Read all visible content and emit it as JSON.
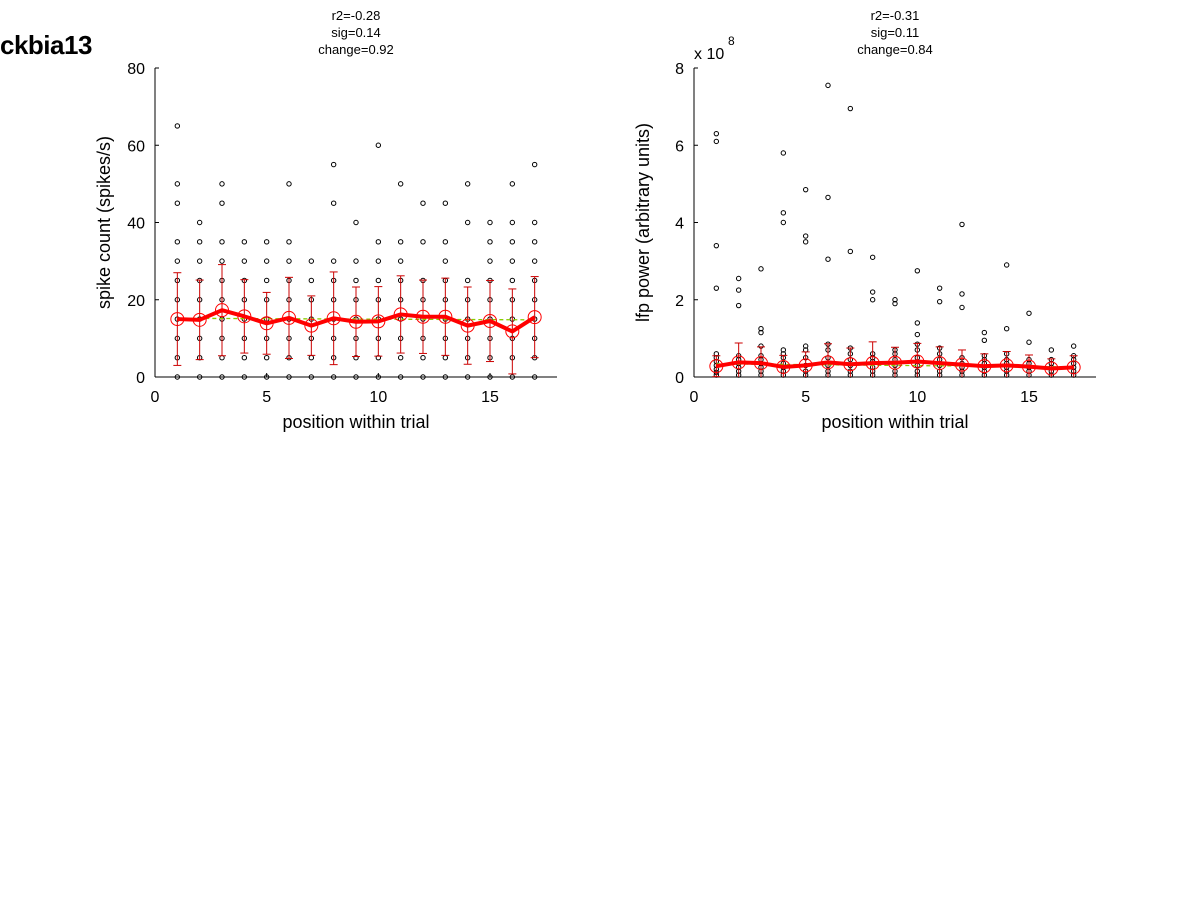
{
  "figure_title": "ckbia13",
  "colors": {
    "raw_points": "#000000",
    "mean_line": "#ff0000",
    "error_bar": "#cc0000",
    "fit_line": "#88cc00",
    "axis": "#000000"
  },
  "chart_data": [
    {
      "type": "scatter",
      "stats": [
        "r2=-0.28",
        "sig=0.14",
        "change=0.92"
      ],
      "xlabel": "position within trial",
      "ylabel": "spike count (spikes/s)",
      "xlim": [
        0,
        18
      ],
      "ylim": [
        0,
        80
      ],
      "xticks": [
        0,
        5,
        10,
        15
      ],
      "yticks": [
        0,
        20,
        40,
        60,
        80
      ],
      "ytick_labels": [
        "0",
        "20",
        "40",
        "60",
        "80"
      ],
      "exponent_label": null,
      "raw_points": [
        [
          1,
          0
        ],
        [
          1,
          5
        ],
        [
          1,
          10
        ],
        [
          1,
          15
        ],
        [
          1,
          20
        ],
        [
          1,
          25
        ],
        [
          1,
          30
        ],
        [
          1,
          35
        ],
        [
          1,
          45
        ],
        [
          1,
          50
        ],
        [
          1,
          65
        ],
        [
          2,
          0
        ],
        [
          2,
          5
        ],
        [
          2,
          10
        ],
        [
          2,
          15
        ],
        [
          2,
          20
        ],
        [
          2,
          25
        ],
        [
          2,
          30
        ],
        [
          2,
          35
        ],
        [
          2,
          40
        ],
        [
          3,
          0
        ],
        [
          3,
          5
        ],
        [
          3,
          10
        ],
        [
          3,
          15
        ],
        [
          3,
          20
        ],
        [
          3,
          25
        ],
        [
          3,
          30
        ],
        [
          3,
          35
        ],
        [
          3,
          45
        ],
        [
          3,
          50
        ],
        [
          4,
          0
        ],
        [
          4,
          5
        ],
        [
          4,
          10
        ],
        [
          4,
          15
        ],
        [
          4,
          20
        ],
        [
          4,
          25
        ],
        [
          4,
          30
        ],
        [
          4,
          35
        ],
        [
          5,
          0
        ],
        [
          5,
          5
        ],
        [
          5,
          10
        ],
        [
          5,
          15
        ],
        [
          5,
          20
        ],
        [
          5,
          25
        ],
        [
          5,
          30
        ],
        [
          5,
          35
        ],
        [
          6,
          0
        ],
        [
          6,
          5
        ],
        [
          6,
          10
        ],
        [
          6,
          15
        ],
        [
          6,
          20
        ],
        [
          6,
          25
        ],
        [
          6,
          30
        ],
        [
          6,
          35
        ],
        [
          6,
          50
        ],
        [
          7,
          0
        ],
        [
          7,
          5
        ],
        [
          7,
          10
        ],
        [
          7,
          15
        ],
        [
          7,
          20
        ],
        [
          7,
          25
        ],
        [
          7,
          30
        ],
        [
          8,
          0
        ],
        [
          8,
          5
        ],
        [
          8,
          10
        ],
        [
          8,
          15
        ],
        [
          8,
          20
        ],
        [
          8,
          25
        ],
        [
          8,
          30
        ],
        [
          8,
          45
        ],
        [
          8,
          55
        ],
        [
          9,
          0
        ],
        [
          9,
          5
        ],
        [
          9,
          10
        ],
        [
          9,
          15
        ],
        [
          9,
          20
        ],
        [
          9,
          25
        ],
        [
          9,
          30
        ],
        [
          9,
          40
        ],
        [
          10,
          0
        ],
        [
          10,
          5
        ],
        [
          10,
          10
        ],
        [
          10,
          15
        ],
        [
          10,
          20
        ],
        [
          10,
          25
        ],
        [
          10,
          30
        ],
        [
          10,
          35
        ],
        [
          10,
          60
        ],
        [
          11,
          0
        ],
        [
          11,
          5
        ],
        [
          11,
          10
        ],
        [
          11,
          15
        ],
        [
          11,
          20
        ],
        [
          11,
          25
        ],
        [
          11,
          30
        ],
        [
          11,
          35
        ],
        [
          11,
          50
        ],
        [
          12,
          0
        ],
        [
          12,
          5
        ],
        [
          12,
          10
        ],
        [
          12,
          15
        ],
        [
          12,
          20
        ],
        [
          12,
          25
        ],
        [
          12,
          35
        ],
        [
          12,
          45
        ],
        [
          13,
          0
        ],
        [
          13,
          5
        ],
        [
          13,
          10
        ],
        [
          13,
          15
        ],
        [
          13,
          20
        ],
        [
          13,
          25
        ],
        [
          13,
          30
        ],
        [
          13,
          35
        ],
        [
          13,
          45
        ],
        [
          14,
          0
        ],
        [
          14,
          5
        ],
        [
          14,
          10
        ],
        [
          14,
          15
        ],
        [
          14,
          20
        ],
        [
          14,
          25
        ],
        [
          14,
          40
        ],
        [
          14,
          50
        ],
        [
          15,
          0
        ],
        [
          15,
          5
        ],
        [
          15,
          10
        ],
        [
          15,
          15
        ],
        [
          15,
          20
        ],
        [
          15,
          25
        ],
        [
          15,
          30
        ],
        [
          15,
          35
        ],
        [
          15,
          40
        ],
        [
          16,
          0
        ],
        [
          16,
          5
        ],
        [
          16,
          10
        ],
        [
          16,
          15
        ],
        [
          16,
          20
        ],
        [
          16,
          25
        ],
        [
          16,
          30
        ],
        [
          16,
          35
        ],
        [
          16,
          40
        ],
        [
          16,
          50
        ],
        [
          17,
          0
        ],
        [
          17,
          5
        ],
        [
          17,
          10
        ],
        [
          17,
          15
        ],
        [
          17,
          20
        ],
        [
          17,
          25
        ],
        [
          17,
          30
        ],
        [
          17,
          35
        ],
        [
          17,
          40
        ],
        [
          17,
          55
        ]
      ],
      "mean_x": [
        1,
        2,
        3,
        4,
        5,
        6,
        7,
        8,
        9,
        10,
        11,
        12,
        13,
        14,
        15,
        16,
        17
      ],
      "mean": [
        15.0,
        14.8,
        17.3,
        15.7,
        13.9,
        15.3,
        13.3,
        15.2,
        14.3,
        14.4,
        16.2,
        15.6,
        15.6,
        13.3,
        14.5,
        11.8,
        15.5
      ],
      "error": [
        12.0,
        10.3,
        11.8,
        9.5,
        8.0,
        10.5,
        7.7,
        12.0,
        9.0,
        9.0,
        10.0,
        9.5,
        10.0,
        10.0,
        10.5,
        11.0,
        10.5
      ],
      "fit": [
        [
          1,
          15.2
        ],
        [
          17,
          14.8
        ]
      ]
    },
    {
      "type": "scatter",
      "stats": [
        "r2=-0.31",
        "sig=0.11",
        "change=0.84"
      ],
      "xlabel": "position within trial",
      "ylabel": "lfp power (arbitrary units)",
      "xlim": [
        0,
        18
      ],
      "ylim": [
        0,
        8
      ],
      "xticks": [
        0,
        5,
        10,
        15
      ],
      "yticks": [
        0,
        2,
        4,
        6,
        8
      ],
      "ytick_labels": [
        "0",
        "2",
        "4",
        "6",
        "8"
      ],
      "exponent_label": {
        "base": "x 10",
        "power": "8"
      },
      "raw_points": [
        [
          1,
          0.05
        ],
        [
          1,
          0.12
        ],
        [
          1,
          0.2
        ],
        [
          1,
          0.3
        ],
        [
          1,
          0.4
        ],
        [
          1,
          0.5
        ],
        [
          1,
          0.6
        ],
        [
          1,
          2.3
        ],
        [
          1,
          3.4
        ],
        [
          1,
          6.1
        ],
        [
          1,
          6.3
        ],
        [
          2,
          0.05
        ],
        [
          2,
          0.15
        ],
        [
          2,
          0.25
        ],
        [
          2,
          0.35
        ],
        [
          2,
          0.45
        ],
        [
          2,
          0.55
        ],
        [
          2,
          1.85
        ],
        [
          2,
          2.25
        ],
        [
          2,
          2.55
        ],
        [
          3,
          0.05
        ],
        [
          3,
          0.15
        ],
        [
          3,
          0.25
        ],
        [
          3,
          0.35
        ],
        [
          3,
          0.45
        ],
        [
          3,
          0.55
        ],
        [
          3,
          0.8
        ],
        [
          3,
          1.15
        ],
        [
          3,
          1.25
        ],
        [
          3,
          2.8
        ],
        [
          4,
          0.05
        ],
        [
          4,
          0.15
        ],
        [
          4,
          0.25
        ],
        [
          4,
          0.35
        ],
        [
          4,
          0.5
        ],
        [
          4,
          0.6
        ],
        [
          4,
          0.7
        ],
        [
          4,
          4.0
        ],
        [
          4,
          4.25
        ],
        [
          4,
          5.8
        ],
        [
          5,
          0.05
        ],
        [
          5,
          0.15
        ],
        [
          5,
          0.3
        ],
        [
          5,
          0.5
        ],
        [
          5,
          0.7
        ],
        [
          5,
          0.8
        ],
        [
          5,
          3.5
        ],
        [
          5,
          3.65
        ],
        [
          5,
          4.85
        ],
        [
          6,
          0.05
        ],
        [
          6,
          0.15
        ],
        [
          6,
          0.3
        ],
        [
          6,
          0.5
        ],
        [
          6,
          0.7
        ],
        [
          6,
          0.85
        ],
        [
          6,
          3.05
        ],
        [
          6,
          4.65
        ],
        [
          6,
          7.55
        ],
        [
          7,
          0.05
        ],
        [
          7,
          0.15
        ],
        [
          7,
          0.3
        ],
        [
          7,
          0.45
        ],
        [
          7,
          0.6
        ],
        [
          7,
          0.75
        ],
        [
          7,
          3.25
        ],
        [
          7,
          6.95
        ],
        [
          8,
          0.05
        ],
        [
          8,
          0.15
        ],
        [
          8,
          0.25
        ],
        [
          8,
          0.4
        ],
        [
          8,
          0.5
        ],
        [
          8,
          0.6
        ],
        [
          8,
          2.0
        ],
        [
          8,
          2.2
        ],
        [
          8,
          3.1
        ],
        [
          9,
          0.05
        ],
        [
          9,
          0.15
        ],
        [
          9,
          0.3
        ],
        [
          9,
          0.45
        ],
        [
          9,
          0.6
        ],
        [
          9,
          0.7
        ],
        [
          9,
          1.9
        ],
        [
          9,
          2.0
        ],
        [
          10,
          0.05
        ],
        [
          10,
          0.15
        ],
        [
          10,
          0.3
        ],
        [
          10,
          0.5
        ],
        [
          10,
          0.7
        ],
        [
          10,
          0.85
        ],
        [
          10,
          1.1
        ],
        [
          10,
          1.4
        ],
        [
          10,
          2.75
        ],
        [
          11,
          0.05
        ],
        [
          11,
          0.15
        ],
        [
          11,
          0.3
        ],
        [
          11,
          0.45
        ],
        [
          11,
          0.6
        ],
        [
          11,
          0.75
        ],
        [
          11,
          1.95
        ],
        [
          11,
          2.3
        ],
        [
          12,
          0.05
        ],
        [
          12,
          0.15
        ],
        [
          12,
          0.25
        ],
        [
          12,
          0.35
        ],
        [
          12,
          0.5
        ],
        [
          12,
          1.8
        ],
        [
          12,
          2.15
        ],
        [
          12,
          3.95
        ],
        [
          13,
          0.05
        ],
        [
          13,
          0.15
        ],
        [
          13,
          0.25
        ],
        [
          13,
          0.35
        ],
        [
          13,
          0.45
        ],
        [
          13,
          0.55
        ],
        [
          13,
          0.95
        ],
        [
          13,
          1.15
        ],
        [
          14,
          0.05
        ],
        [
          14,
          0.15
        ],
        [
          14,
          0.25
        ],
        [
          14,
          0.35
        ],
        [
          14,
          0.45
        ],
        [
          14,
          0.6
        ],
        [
          14,
          1.25
        ],
        [
          14,
          2.9
        ],
        [
          15,
          0.05
        ],
        [
          15,
          0.15
        ],
        [
          15,
          0.25
        ],
        [
          15,
          0.35
        ],
        [
          15,
          0.45
        ],
        [
          15,
          0.9
        ],
        [
          15,
          1.65
        ],
        [
          16,
          0.05
        ],
        [
          16,
          0.15
        ],
        [
          16,
          0.25
        ],
        [
          16,
          0.35
        ],
        [
          16,
          0.45
        ],
        [
          16,
          0.7
        ],
        [
          17,
          0.05
        ],
        [
          17,
          0.15
        ],
        [
          17,
          0.25
        ],
        [
          17,
          0.35
        ],
        [
          17,
          0.45
        ],
        [
          17,
          0.55
        ],
        [
          17,
          0.8
        ]
      ],
      "mean_x": [
        1,
        2,
        3,
        4,
        5,
        6,
        7,
        8,
        9,
        10,
        11,
        12,
        13,
        14,
        15,
        16,
        17
      ],
      "mean": [
        0.28,
        0.38,
        0.36,
        0.26,
        0.3,
        0.38,
        0.33,
        0.36,
        0.37,
        0.4,
        0.36,
        0.32,
        0.28,
        0.3,
        0.27,
        0.22,
        0.25
      ],
      "error": [
        0.27,
        0.5,
        0.42,
        0.3,
        0.35,
        0.48,
        0.42,
        0.55,
        0.4,
        0.47,
        0.42,
        0.38,
        0.32,
        0.36,
        0.3,
        0.25,
        0.3
      ],
      "fit": [
        [
          1,
          0.34
        ],
        [
          17,
          0.26
        ]
      ]
    }
  ]
}
